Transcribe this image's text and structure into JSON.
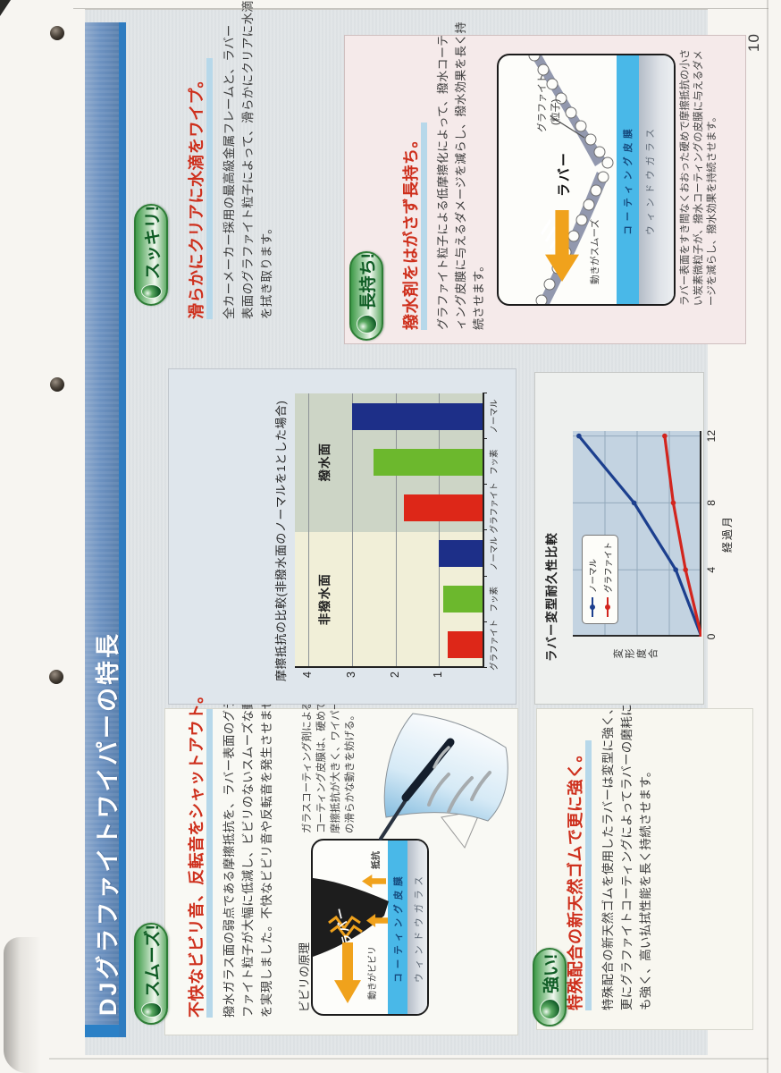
{
  "page": {
    "page_number": "10",
    "header": {
      "title": "DJグラファイトワイパーの特長"
    }
  },
  "sections": {
    "smooth": {
      "badge": "スムーズ!",
      "heading": "不快なビビリ音、反転音をシャットアウト。",
      "body_lines": [
        "撥水ガラス面の弱点である摩擦抵抗を、ラバー表面のグラ",
        "ファイト粒子が大幅に低減し、ビビリのないスムーズな動き",
        "を実現しました。不快なビビリ音や反転音を発生させません。"
      ],
      "diagram": {
        "label": "ビビリの原理",
        "rubber": "ラバー",
        "resistance": "抵抗",
        "movement": "動きがビビリ",
        "coating": "コーティング皮膜",
        "glass": "ウィンドウガラス",
        "note_lines": [
          "ガラスコーティング剤による",
          "コーティング皮膜は、硬めで",
          "摩擦抵抗が大きく、ワイパー",
          "の滑らかな動きを妨げる。"
        ]
      }
    },
    "clean": {
      "badge": "スッキリ!",
      "heading": "滑らかにクリアに水滴をワイプ。",
      "body_lines": [
        "全カーメーカー採用の最高級金属フレームと、ラバー",
        "表面のグラファイト粒子によって、滑らかにクリアに水滴",
        "を拭き取ります。"
      ]
    },
    "longlast": {
      "badge": "長持ち!",
      "heading": "撥水剤をはがさず長持ち。",
      "body_lines": [
        "グラファイト粒子による低摩擦化によって、撥水コーテ",
        "ィング皮膜に与えるダメージを減らし、撥水効果を長く持",
        "続させます。"
      ],
      "diagram": {
        "particle_label": "グラファイト",
        "particle_label2": "(粒子)",
        "rubber": "ラバー",
        "movement": "動きがスムーズ",
        "coating": "コーティング皮膜",
        "glass": "ウィンドウガラス"
      },
      "caption_lines": [
        "ラバー表面をすき間なくおおった硬めで摩擦抵抗の小さ",
        "い炭素微粒子が、撥水コーティングの皮膜に与えるダメ",
        "ージを減らし、撥水効果を持続させます。"
      ]
    },
    "strong": {
      "badge": "強い!",
      "heading": "特殊配合の新天然ゴムで更に強く。",
      "body_lines": [
        "特殊配合の新天然ゴムを使用したラバーは変型に強く、",
        "更にグラファイトコーティングによってラバーの磨耗に",
        "も強く、高い払拭性能を長く持続させます。"
      ]
    }
  },
  "chart_data": [
    {
      "type": "bar",
      "title": "摩擦抵抗の比較(非撥水面のノーマルを1とした場合)",
      "group_labels": [
        "非撥水面",
        "撥水面"
      ],
      "categories": [
        "グラファイト",
        "フッ素",
        "ノーマル",
        "グラファイト",
        "フッ素",
        "ノーマル"
      ],
      "values": [
        0.8,
        0.9,
        1.0,
        1.8,
        2.5,
        3.0
      ],
      "bar_colors": [
        "#dd2718",
        "#6cb82d",
        "#1d2f88",
        "#dd2718",
        "#6cb82d",
        "#1d2f88"
      ],
      "ylim": [
        0,
        4.3
      ],
      "yticks": [
        1,
        2,
        3,
        4
      ],
      "grid": true,
      "plot_bg": [
        "#f1efd8",
        "#cdd5c6"
      ]
    },
    {
      "type": "line",
      "title": "ラバー変型耐久性比較",
      "xlabel": "経過月",
      "ylabel": "変形度合",
      "x": [
        0,
        4,
        8,
        12
      ],
      "xlim": [
        0,
        12.3
      ],
      "ylim": [
        0,
        1.05
      ],
      "series": [
        {
          "name": "ノーマル",
          "color": "#1c3f8e",
          "values": [
            0,
            0.21,
            0.55,
            1.0
          ]
        },
        {
          "name": "グラファイト",
          "color": "#d2251e",
          "values": [
            0,
            0.13,
            0.23,
            0.3
          ]
        }
      ],
      "legend_position": "upper left",
      "grid": true
    }
  ],
  "colors": {
    "header_blue": "#6d92c1",
    "badge_green": "#2e8b3a",
    "heading_red": "#ce2f1c",
    "underline_blue": "#b7d8ea",
    "coating_blue": "#49b8e8",
    "arrow_orange": "#f0a21c"
  }
}
